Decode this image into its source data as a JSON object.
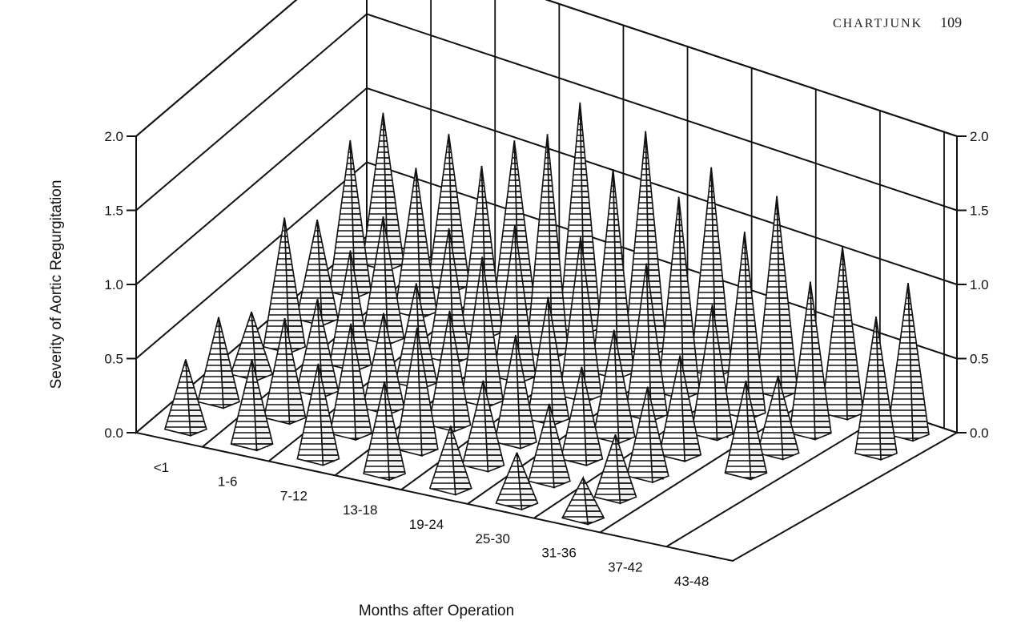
{
  "header": {
    "running_head": "CHARTJUNK",
    "page_number": "109"
  },
  "chart_data": {
    "type": "bar",
    "style": "3d-spikes",
    "title": "",
    "xlabel": "Months after Operation",
    "ylabel": "Severity of Aortic Regurgitation",
    "ylim": [
      0,
      2.0
    ],
    "yticks": [
      "0.0",
      "0.5",
      "1.0",
      "1.5",
      "2.0"
    ],
    "grid": true,
    "categories": [
      "<1",
      "1-6",
      "7-12",
      "13-18",
      "19-24",
      "25-30",
      "31-36",
      "37-42",
      "43-48"
    ],
    "series": [
      {
        "values": [
          0.45,
          0.55,
          0.62,
          0.6,
          0.4,
          0.32,
          0.25,
          null,
          null
        ]
      },
      {
        "values": [
          0.55,
          0.65,
          0.72,
          0.8,
          0.55,
          0.5,
          0.4,
          null,
          null
        ]
      },
      {
        "values": [
          0.4,
          0.6,
          0.62,
          0.75,
          0.7,
          0.6,
          0.58,
          null,
          null
        ]
      },
      {
        "values": [
          0.85,
          0.75,
          0.65,
          0.95,
          0.8,
          0.7,
          0.65,
          0.6,
          null
        ]
      },
      {
        "values": [
          0.65,
          0.8,
          0.85,
          1.0,
          1.05,
          1.0,
          0.85,
          0.5,
          null
        ]
      },
      {
        "values": [
          1.0,
          0.95,
          1.1,
          1.45,
          1.35,
          1.3,
          1.2,
          1.0,
          0.9
        ]
      },
      {
        "values": [
          1.0,
          1.0,
          1.1,
          1.5,
          1.45,
          1.35,
          1.3,
          1.1,
          1.0
        ]
      }
    ],
    "markers": [
      {
        "category": "1-6",
        "row": 0,
        "value": 0
      },
      {
        "category": "7-12",
        "row": 0,
        "value": 0
      },
      {
        "category": "25-30",
        "row": 0,
        "value": 0
      },
      {
        "category": "31-36",
        "row": 2,
        "value": 0
      },
      {
        "category": "31-36",
        "row": 4,
        "value": 0
      }
    ]
  }
}
